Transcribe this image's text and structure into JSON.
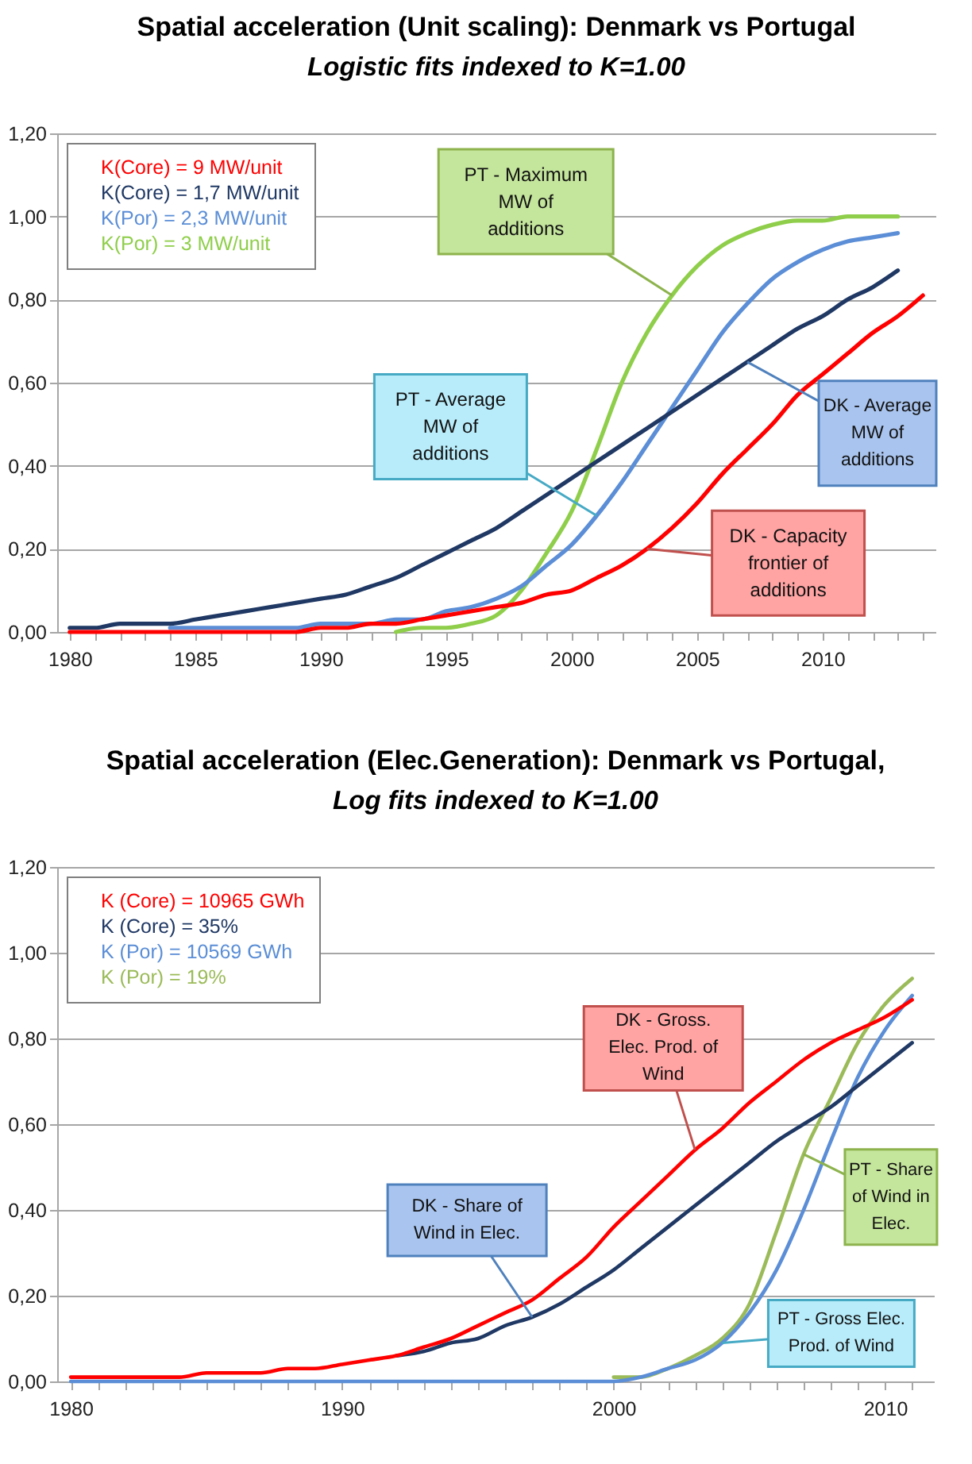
{
  "chart_data": [
    {
      "type": "line",
      "title": "Spatial acceleration (Unit scaling): Denmark vs Portugal",
      "subtitle": "Logistic fits indexed  to K=1.00",
      "grid": "y",
      "legend": "top left",
      "xlim": [
        1979.5,
        2014.5
      ],
      "xticks": [
        1980,
        {
          "value": 1981,
          "label": null
        },
        {
          "value": 1982,
          "label": null
        },
        {
          "value": 1983,
          "label": null
        },
        {
          "value": 1984,
          "label": null
        },
        1985,
        {
          "value": 1986,
          "label": null
        },
        {
          "value": 1987,
          "label": null
        },
        {
          "value": 1988,
          "label": null
        },
        {
          "value": 1989,
          "label": null
        },
        1990,
        {
          "value": 1991,
          "label": null
        },
        {
          "value": 1992,
          "label": null
        },
        {
          "value": 1993,
          "label": null
        },
        {
          "value": 1994,
          "label": null
        },
        1995,
        {
          "value": 1996,
          "label": null
        },
        {
          "value": 1997,
          "label": null
        },
        {
          "value": 1998,
          "label": null
        },
        {
          "value": 1999,
          "label": null
        },
        2000,
        {
          "value": 2001,
          "label": null
        },
        {
          "value": 2002,
          "label": null
        },
        {
          "value": 2003,
          "label": null
        },
        {
          "value": 2004,
          "label": null
        },
        2005,
        {
          "value": 2006,
          "label": null
        },
        {
          "value": 2007,
          "label": null
        },
        {
          "value": 2008,
          "label": null
        },
        {
          "value": 2009,
          "label": null
        },
        2010,
        {
          "value": 2011,
          "label": null
        },
        {
          "value": 2012,
          "label": null
        },
        {
          "value": 2013,
          "label": null
        },
        {
          "value": 2014,
          "label": null
        }
      ],
      "ylim": [
        0,
        1.2
      ],
      "yticks": [
        {
          "value": 0,
          "label": "0,00"
        },
        {
          "value": 0.2,
          "label": "0,20"
        },
        {
          "value": 0.4,
          "label": "0,40"
        },
        {
          "value": 0.6,
          "label": "0,60"
        },
        {
          "value": 0.8,
          "label": "0,80"
        },
        {
          "value": 1,
          "label": "1,00"
        },
        {
          "value": 1.2,
          "label": "1,20"
        }
      ],
      "x": [
        1980,
        1981,
        1982,
        1983,
        1984,
        1985,
        1986,
        1987,
        1988,
        1989,
        1990,
        1991,
        1992,
        1993,
        1994,
        1995,
        1996,
        1997,
        1998,
        1999,
        2000,
        2001,
        2002,
        2003,
        2004,
        2005,
        2006,
        2007,
        2008,
        2009,
        2010,
        2011,
        2012,
        2013
      ],
      "series": [
        {
          "name": "K(Core) = 9 MW/unit",
          "color": "#ff0000",
          "x": [
            1980,
            1981,
            1982,
            1983,
            1984,
            1985,
            1986,
            1987,
            1988,
            1989,
            1990,
            1991,
            1992,
            1993,
            1994,
            1995,
            1996,
            1997,
            1998,
            1999,
            2000,
            2001,
            2002,
            2003,
            2004,
            2005,
            2006,
            2007,
            2008,
            2009,
            2010,
            2011,
            2012,
            2013,
            2014
          ],
          "values": [
            0,
            0,
            0,
            0,
            0,
            0,
            0,
            0,
            0,
            0,
            0.01,
            0.01,
            0.02,
            0.02,
            0.03,
            0.04,
            0.05,
            0.06,
            0.07,
            0.09,
            0.1,
            0.13,
            0.16,
            0.2,
            0.25,
            0.31,
            0.38,
            0.44,
            0.5,
            0.57,
            0.62,
            0.67,
            0.72,
            0.76,
            0.81
          ]
        },
        {
          "name": "K(Core) = 1,7 MW/unit",
          "color": "#1f3864",
          "values": [
            0.01,
            0.01,
            0.02,
            0.02,
            0.02,
            0.03,
            0.04,
            0.05,
            0.06,
            0.07,
            0.08,
            0.09,
            0.11,
            0.13,
            0.16,
            0.19,
            0.22,
            0.25,
            0.29,
            0.33,
            0.37,
            0.41,
            0.45,
            0.49,
            0.53,
            0.57,
            0.61,
            0.65,
            0.69,
            0.73,
            0.76,
            0.8,
            0.83,
            0.87
          ]
        },
        {
          "name": "K(Por) = 2,3 MW/unit",
          "color": "#5b8ed6",
          "values": [
            null,
            null,
            null,
            null,
            0.01,
            0.01,
            0.01,
            0.01,
            0.01,
            0.01,
            0.02,
            0.02,
            0.02,
            0.03,
            0.03,
            0.05,
            0.06,
            0.08,
            0.11,
            0.16,
            0.21,
            0.28,
            0.36,
            0.45,
            0.54,
            0.63,
            0.72,
            0.79,
            0.85,
            0.89,
            0.92,
            0.94,
            0.95,
            0.96
          ]
        },
        {
          "name": "K(Por) = 3 MW/unit",
          "color": "#8fce4a",
          "values": [
            null,
            null,
            null,
            null,
            null,
            null,
            null,
            null,
            null,
            null,
            null,
            null,
            null,
            0,
            0.01,
            0.01,
            0.02,
            0.04,
            0.1,
            0.19,
            0.29,
            0.44,
            0.6,
            0.72,
            0.81,
            0.88,
            0.93,
            0.96,
            0.98,
            0.99,
            0.99,
            1.0,
            1.0,
            1.0
          ]
        }
      ],
      "annotations": [
        {
          "text": "PT - Maximum\nMW of\nadditions",
          "x": 2004,
          "y": 0.81
        },
        {
          "text": "PT - Average\nMW of\nadditions",
          "x": 2001,
          "y": 0.28
        },
        {
          "text": "DK - Average\nMW of\nadditions",
          "x": 2007,
          "y": 0.65
        },
        {
          "text": "DK - Capacity\nfrontier of\nadditions",
          "x": 2003,
          "y": 0.2
        }
      ]
    },
    {
      "type": "line",
      "title": "Spatial acceleration (Elec.Generation): Denmark vs Portugal,",
      "subtitle": "Log fits indexed  to K=1.00",
      "grid": "y",
      "legend": "top left",
      "xlim": [
        1979.5,
        2011.8
      ],
      "xticks": [
        1980,
        {
          "value": 1981,
          "label": null
        },
        {
          "value": 1982,
          "label": null
        },
        {
          "value": 1983,
          "label": null
        },
        {
          "value": 1984,
          "label": null
        },
        {
          "value": 1985,
          "label": null
        },
        {
          "value": 1986,
          "label": null
        },
        {
          "value": 1987,
          "label": null
        },
        {
          "value": 1988,
          "label": null
        },
        {
          "value": 1989,
          "label": null
        },
        1990,
        {
          "value": 1991,
          "label": null
        },
        {
          "value": 1992,
          "label": null
        },
        {
          "value": 1993,
          "label": null
        },
        {
          "value": 1994,
          "label": null
        },
        {
          "value": 1995,
          "label": null
        },
        {
          "value": 1996,
          "label": null
        },
        {
          "value": 1997,
          "label": null
        },
        {
          "value": 1998,
          "label": null
        },
        {
          "value": 1999,
          "label": null
        },
        2000,
        {
          "value": 2001,
          "label": null
        },
        {
          "value": 2002,
          "label": null
        },
        {
          "value": 2003,
          "label": null
        },
        {
          "value": 2004,
          "label": null
        },
        {
          "value": 2005,
          "label": null
        },
        {
          "value": 2006,
          "label": null
        },
        {
          "value": 2007,
          "label": null
        },
        {
          "value": 2008,
          "label": null
        },
        {
          "value": 2009,
          "label": null
        },
        2010,
        {
          "value": 2011,
          "label": null
        }
      ],
      "ylim": [
        0,
        1.2
      ],
      "yticks": [
        {
          "value": 0,
          "label": "0,00"
        },
        {
          "value": 0.2,
          "label": "0,20"
        },
        {
          "value": 0.4,
          "label": "0,40"
        },
        {
          "value": 0.6,
          "label": "0,60"
        },
        {
          "value": 0.8,
          "label": "0,80"
        },
        {
          "value": 1,
          "label": "1,00"
        },
        {
          "value": 1.2,
          "label": "1,20"
        }
      ],
      "x": [
        1980,
        1981,
        1982,
        1983,
        1984,
        1985,
        1986,
        1987,
        1988,
        1989,
        1990,
        1991,
        1992,
        1993,
        1994,
        1995,
        1996,
        1997,
        1998,
        1999,
        2000,
        2001,
        2002,
        2003,
        2004,
        2005,
        2006,
        2007,
        2008,
        2009,
        2010,
        2011
      ],
      "series": [
        {
          "name": "K (Core) = 10965 GWh",
          "color": "#ff0000",
          "values": [
            0.01,
            0.01,
            0.01,
            0.01,
            0.01,
            0.02,
            0.02,
            0.02,
            0.03,
            0.03,
            0.04,
            0.05,
            0.06,
            0.08,
            0.1,
            0.13,
            0.16,
            0.19,
            0.24,
            0.29,
            0.36,
            0.42,
            0.48,
            0.54,
            0.59,
            0.65,
            0.7,
            0.75,
            0.79,
            0.82,
            0.85,
            0.89
          ]
        },
        {
          "name": "K (Core) = 35%",
          "color": "#1f3864",
          "values": [
            null,
            null,
            null,
            null,
            null,
            null,
            null,
            null,
            null,
            null,
            null,
            null,
            0.06,
            0.07,
            0.09,
            0.1,
            0.13,
            0.15,
            0.18,
            0.22,
            0.26,
            0.31,
            0.36,
            0.41,
            0.46,
            0.51,
            0.56,
            0.6,
            0.64,
            0.69,
            0.74,
            0.79
          ]
        },
        {
          "name": "K (Por) = 10569 GWh",
          "color": "#5b8ed6",
          "values": [
            0,
            0,
            0,
            0,
            0,
            0,
            0,
            0,
            0,
            0,
            0,
            0,
            0,
            0,
            0,
            0,
            0,
            0,
            0,
            0,
            0,
            0.01,
            0.03,
            0.05,
            0.09,
            0.16,
            0.26,
            0.4,
            0.56,
            0.71,
            0.82,
            0.9
          ]
        },
        {
          "name": "K (Por) = 19%",
          "color": "#9bbb59",
          "values": [
            null,
            null,
            null,
            null,
            null,
            null,
            null,
            null,
            null,
            null,
            null,
            null,
            null,
            null,
            null,
            null,
            null,
            null,
            null,
            null,
            0.01,
            0.01,
            0.03,
            0.06,
            0.1,
            0.18,
            0.35,
            0.53,
            0.66,
            0.79,
            0.88,
            0.94
          ]
        }
      ],
      "annotations": [
        {
          "text": "DK - Gross.\nElec. Prod. of\nWind",
          "x": 2003,
          "y": 0.54
        },
        {
          "text": "DK - Share of\nWind in Elec.",
          "x": 1997,
          "y": 0.15
        },
        {
          "text": "PT - Share\nof Wind in\nElec.",
          "x": 2007,
          "y": 0.53
        },
        {
          "text": "PT - Gross Elec.\nProd. of Wind",
          "x": 2004,
          "y": 0.09
        }
      ]
    }
  ]
}
